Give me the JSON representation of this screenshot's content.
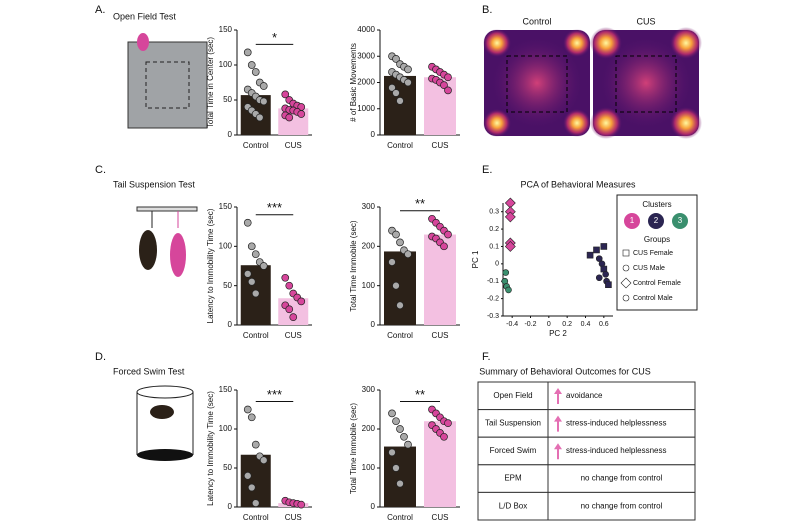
{
  "panels": [
    "A.",
    "B.",
    "C.",
    "D.",
    "E.",
    "F."
  ],
  "tests": [
    "Open Field Test",
    "Tail Suspension Test",
    "Forced Swim Test"
  ],
  "heatmap": {
    "titles": [
      "Control",
      "CUS"
    ]
  },
  "chart_data": [
    {
      "type": "bar",
      "ylabel": "Total Time in Center (sec)",
      "categories": [
        "Control",
        "CUS"
      ],
      "values": [
        57,
        38
      ],
      "colors": [
        "#2b2118",
        "#f3c0e1"
      ],
      "point_colors": [
        "#a9a9a9",
        "#d6469b"
      ],
      "points": [
        [
          118,
          100,
          90,
          75,
          70,
          65,
          60,
          55,
          50,
          48,
          40,
          35,
          30,
          25
        ],
        [
          58,
          50,
          45,
          42,
          40,
          38,
          36,
          35,
          33,
          30,
          28,
          25
        ]
      ],
      "ylim": [
        0,
        150
      ],
      "yticks": [
        0,
        50,
        100,
        150
      ],
      "significance": "*"
    },
    {
      "type": "bar",
      "ylabel": "# of Basic Movements",
      "categories": [
        "Control",
        "CUS"
      ],
      "values": [
        2250,
        2200
      ],
      "colors": [
        "#2b2118",
        "#f3c0e1"
      ],
      "point_colors": [
        "#a9a9a9",
        "#d6469b"
      ],
      "points": [
        [
          3000,
          2900,
          2700,
          2600,
          2500,
          2400,
          2300,
          2200,
          2100,
          2000,
          1800,
          1600,
          1300
        ],
        [
          2600,
          2500,
          2400,
          2300,
          2200,
          2150,
          2100,
          2000,
          1900,
          1700
        ]
      ],
      "ylim": [
        0,
        4000
      ],
      "yticks": [
        0,
        1000,
        2000,
        3000,
        4000
      ]
    },
    {
      "type": "bar",
      "ylabel": "Latency to Immobility Time (sec)",
      "categories": [
        "Control",
        "CUS"
      ],
      "values": [
        76,
        34
      ],
      "colors": [
        "#2b2118",
        "#f3c0e1"
      ],
      "point_colors": [
        "#a9a9a9",
        "#d6469b"
      ],
      "points": [
        [
          130,
          100,
          90,
          80,
          75,
          65,
          55,
          40
        ],
        [
          60,
          50,
          40,
          35,
          30,
          25,
          20,
          10
        ]
      ],
      "ylim": [
        0,
        150
      ],
      "yticks": [
        0,
        50,
        100,
        150
      ],
      "significance": "***"
    },
    {
      "type": "bar",
      "ylabel": "Total Time Immobile (sec)",
      "categories": [
        "Control",
        "CUS"
      ],
      "values": [
        187,
        230
      ],
      "colors": [
        "#2b2118",
        "#f3c0e1"
      ],
      "point_colors": [
        "#a9a9a9",
        "#d6469b"
      ],
      "points": [
        [
          240,
          230,
          210,
          190,
          180,
          160,
          100,
          50
        ],
        [
          270,
          260,
          250,
          240,
          230,
          225,
          220,
          210,
          200
        ]
      ],
      "ylim": [
        0,
        300
      ],
      "yticks": [
        0,
        100,
        200,
        300
      ],
      "significance": "**"
    },
    {
      "type": "bar",
      "ylabel": "Latency to Immobility Time (sec)",
      "categories": [
        "Control",
        "CUS"
      ],
      "values": [
        67,
        5
      ],
      "colors": [
        "#2b2118",
        "#f3c0e1"
      ],
      "point_colors": [
        "#a9a9a9",
        "#d6469b"
      ],
      "points": [
        [
          125,
          115,
          80,
          65,
          60,
          40,
          25,
          5
        ],
        [
          8,
          6,
          5,
          4,
          3
        ]
      ],
      "ylim": [
        0,
        150
      ],
      "yticks": [
        0,
        50,
        100,
        150
      ],
      "significance": "***"
    },
    {
      "type": "bar",
      "ylabel": "Total Time Immobile (sec)",
      "categories": [
        "Control",
        "CUS"
      ],
      "values": [
        155,
        220
      ],
      "colors": [
        "#2b2118",
        "#f3c0e1"
      ],
      "point_colors": [
        "#a9a9a9",
        "#d6469b"
      ],
      "points": [
        [
          240,
          220,
          200,
          180,
          160,
          140,
          100,
          60
        ],
        [
          250,
          240,
          230,
          220,
          215,
          210,
          200,
          190,
          180
        ]
      ],
      "ylim": [
        0,
        300
      ],
      "yticks": [
        0,
        100,
        200,
        300
      ],
      "significance": "**"
    },
    {
      "type": "scatter",
      "title": "PCA of Behavioral Measures",
      "xlabel": "PC 2",
      "ylabel": "PC 1",
      "xlim": [
        -0.5,
        0.7
      ],
      "xticks": [
        -0.4,
        -0.2,
        0,
        0.2,
        0.4,
        0.6
      ],
      "ylim": [
        -0.3,
        0.35
      ],
      "yticks": [
        -0.3,
        -0.2,
        -0.1,
        0,
        0.1,
        0.2,
        0.3
      ],
      "legend_title": "Clusters",
      "groups_title": "Groups",
      "groups": [
        {
          "name": "CUS Female",
          "marker": "square"
        },
        {
          "name": "CUS Male",
          "marker": "circle"
        },
        {
          "name": "Control Female",
          "marker": "diamond"
        },
        {
          "name": "Control Male",
          "marker": "circle"
        }
      ],
      "series": [
        {
          "name": "1",
          "color": "#d6469b",
          "x": [
            -0.42,
            -0.42,
            -0.42,
            -0.42,
            -0.42
          ],
          "y": [
            0.35,
            0.3,
            0.27,
            0.12,
            0.1
          ],
          "markers": [
            "diamond",
            "diamond",
            "diamond",
            "diamond",
            "diamond"
          ]
        },
        {
          "name": "2",
          "color": "#2b2552",
          "x": [
            0.45,
            0.52,
            0.55,
            0.58,
            0.6,
            0.62,
            0.63,
            0.65,
            0.6,
            0.55
          ],
          "y": [
            0.05,
            0.08,
            0.03,
            0,
            -0.03,
            -0.06,
            -0.1,
            -0.12,
            0.1,
            -0.08
          ],
          "markers": [
            "square",
            "square",
            "circle",
            "circle",
            "square",
            "circle",
            "circle",
            "square",
            "square",
            "circle"
          ]
        },
        {
          "name": "3",
          "color": "#3a8f6e",
          "x": [
            -0.48,
            -0.46,
            -0.44,
            -0.47
          ],
          "y": [
            -0.1,
            -0.13,
            -0.15,
            -0.05
          ],
          "markers": [
            "circle",
            "circle",
            "circle",
            "circle"
          ]
        }
      ]
    }
  ],
  "table": {
    "title": "Summary of Behavioral Outcomes for CUS",
    "rows": [
      {
        "test": "Open Field",
        "outcome": "avoidance",
        "arrow": true
      },
      {
        "test": "Tail Suspension",
        "outcome": "stress-induced helplessness",
        "arrow": true
      },
      {
        "test": "Forced Swim",
        "outcome": "stress-induced helplessness",
        "arrow": true
      },
      {
        "test": "EPM",
        "outcome": "no change from control",
        "arrow": false
      },
      {
        "test": "L/D Box",
        "outcome": "no change from control",
        "arrow": false
      }
    ]
  }
}
